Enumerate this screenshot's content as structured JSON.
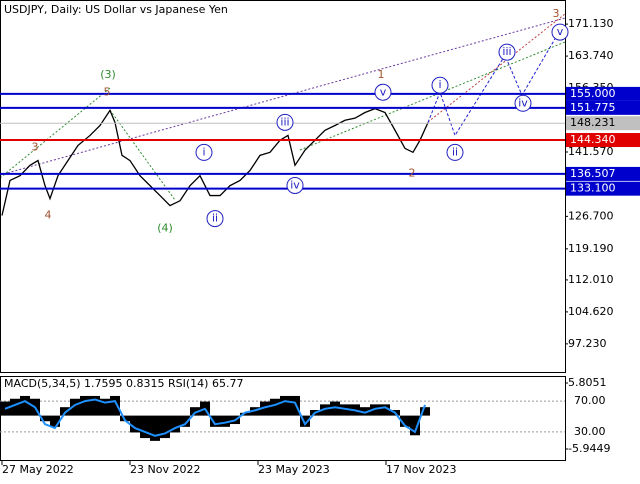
{
  "chart_data": [
    {
      "type": "line",
      "title": "USDJPY, Daily:  US Dollar vs Japanese Yen",
      "x": [
        2,
        10,
        20,
        30,
        38,
        45,
        50,
        58,
        68,
        78,
        90,
        100,
        110,
        115,
        122,
        130,
        140,
        150,
        160,
        170,
        180,
        190,
        200,
        210,
        220,
        230,
        240,
        250,
        260,
        270,
        280,
        288,
        295,
        305,
        315,
        325,
        335,
        345,
        355,
        365,
        375,
        385,
        395,
        405,
        413,
        420,
        428
      ],
      "values": [
        126.9,
        135.0,
        136.1,
        138.5,
        139.6,
        133.8,
        130.8,
        136.1,
        139.6,
        143.1,
        145.4,
        147.7,
        151.2,
        148.4,
        140.8,
        139.6,
        136.1,
        133.8,
        131.5,
        129.2,
        130.3,
        133.8,
        136.1,
        131.5,
        131.5,
        133.8,
        135.0,
        137.3,
        140.8,
        141.5,
        144.3,
        145.4,
        138.5,
        142.0,
        144.3,
        146.6,
        147.7,
        148.9,
        149.4,
        150.7,
        151.6,
        150.7,
        146.6,
        142.4,
        141.5,
        144.3,
        148.4
      ],
      "color": "#000000",
      "forecast": {
        "x": [
          428,
          440,
          455,
          505,
          522,
          560
        ],
        "values": [
          148.4,
          155.4,
          145.4,
          163.9,
          154.7,
          169.7
        ],
        "color": "#2020d0"
      },
      "xlim": [
        0,
        565
      ],
      "xticks": [
        {
          "value": 2,
          "label": "27 May 2022"
        },
        {
          "value": 130,
          "label": "23 Nov 2022"
        },
        {
          "value": 258,
          "label": "23 May 2023"
        },
        {
          "value": 386,
          "label": "17 Nov 2023"
        }
      ],
      "ylim": [
        90.5,
        176.7
      ],
      "yticks": [
        {
          "value": 171.13,
          "label": "171.130"
        },
        {
          "value": 163.74,
          "label": "163.740"
        },
        {
          "value": 156.35,
          "label": "156.350"
        },
        {
          "value": 141.57,
          "label": "141.570"
        },
        {
          "value": 126.7,
          "label": "126.700"
        },
        {
          "value": 119.19,
          "label": "119.190"
        },
        {
          "value": 112.01,
          "label": "112.010"
        },
        {
          "value": 104.62,
          "label": "104.620"
        },
        {
          "value": 97.23,
          "label": "97.230"
        }
      ],
      "levels": [
        {
          "value": 155,
          "label": "155.000",
          "color": "#0000cd"
        },
        {
          "value": 151.775,
          "label": "151.775",
          "color": "#0000cd"
        },
        {
          "value": 148.231,
          "label": "148.231",
          "color": "#c0c0c0"
        },
        {
          "value": 144.34,
          "label": "144.340",
          "color": "#e00000"
        },
        {
          "value": 136.507,
          "label": "136.507",
          "color": "#0000cd"
        },
        {
          "value": 133.1,
          "label": "133.100",
          "color": "#0000cd"
        }
      ],
      "annotations": [
        {
          "text": "(3)",
          "x": 108,
          "y": 159.32,
          "color": "#2e8b2e",
          "circled": false
        },
        {
          "text": "5",
          "x": 107,
          "y": 155.38,
          "color": "#a0522d",
          "circled": false
        },
        {
          "text": "3",
          "x": 35,
          "y": 142.64,
          "color": "#a0522d",
          "circled": false
        },
        {
          "text": "4",
          "x": 48,
          "y": 126.89,
          "color": "#a0522d",
          "circled": false
        },
        {
          "text": "(4)",
          "x": 165,
          "y": 123.88,
          "color": "#2e8b2e",
          "circled": false
        },
        {
          "text": "i",
          "x": 204,
          "y": 141.48,
          "color": "#2020c0",
          "circled": true
        },
        {
          "text": "ii",
          "x": 215,
          "y": 126.19,
          "color": "#2020c0",
          "circled": true
        },
        {
          "text": "iii",
          "x": 285,
          "y": 148.43,
          "color": "#2020c0",
          "circled": true
        },
        {
          "text": "iv",
          "x": 295,
          "y": 133.84,
          "color": "#2020c0",
          "circled": true
        },
        {
          "text": "v",
          "x": 383,
          "y": 155.38,
          "color": "#2020c0",
          "circled": true
        },
        {
          "text": "1",
          "x": 381,
          "y": 159.32,
          "color": "#a0522d",
          "circled": false
        },
        {
          "text": "2",
          "x": 412,
          "y": 136.62,
          "color": "#a0522d",
          "circled": false
        },
        {
          "text": "i",
          "x": 440,
          "y": 157.0,
          "color": "#2020c0",
          "circled": true
        },
        {
          "text": "ii",
          "x": 455,
          "y": 141.48,
          "color": "#2020c0",
          "circled": true
        },
        {
          "text": "iii",
          "x": 507,
          "y": 164.64,
          "color": "#2020c0",
          "circled": true
        },
        {
          "text": "iv",
          "x": 523,
          "y": 152.83,
          "color": "#2020c0",
          "circled": true
        },
        {
          "text": "v",
          "x": 560,
          "y": 169.28,
          "color": "#2020c0",
          "circled": true
        },
        {
          "text": "3",
          "x": 556,
          "y": 173.45,
          "color": "#a0522d",
          "circled": false
        }
      ]
    },
    {
      "type": "bar",
      "title": "MACD(5,34,5) 1.7595 0.8315 RSI(14) 65.77",
      "x": [
        0,
        10,
        20,
        30,
        40,
        50,
        60,
        70,
        80,
        90,
        100,
        110,
        120,
        130,
        140,
        150,
        160,
        170,
        180,
        190,
        200,
        210,
        220,
        230,
        240,
        250,
        260,
        270,
        280,
        290,
        300,
        310,
        320,
        330,
        340,
        350,
        360,
        370,
        380,
        390,
        400,
        410,
        420
      ],
      "values": [
        2.5,
        3,
        3.5,
        3,
        -1,
        -2,
        1.5,
        3,
        3.5,
        3.5,
        3,
        3.5,
        -1,
        -3,
        -4,
        -4.5,
        -4,
        -3,
        -2,
        1.5,
        2.5,
        -2,
        -2,
        -1.5,
        0.5,
        1.5,
        2.5,
        3,
        3.5,
        3.5,
        -2,
        1,
        2,
        2.5,
        2,
        2,
        1.5,
        2,
        2,
        1,
        -2,
        -3.5,
        1.5
      ],
      "color": "#000000",
      "ylim": [
        -7.903,
        6.873
      ],
      "yticks": [
        5.8051,
        -5.9449
      ],
      "rsi": {
        "values": [
          60,
          65,
          70,
          62,
          40,
          35,
          55,
          65,
          70,
          72,
          68,
          70,
          45,
          35,
          30,
          25,
          28,
          35,
          40,
          55,
          60,
          40,
          42,
          45,
          55,
          58,
          62,
          65,
          70,
          68,
          40,
          55,
          60,
          62,
          60,
          58,
          55,
          60,
          62,
          55,
          38,
          30,
          65
        ],
        "color": "#1e90ff",
        "axis": "y2"
      },
      "y2lim": [
        -6.45,
        101.3
      ],
      "y2ticks": [
        {
          "value": 70,
          "label": "70.00"
        },
        {
          "value": 30,
          "label": "30.00"
        }
      ]
    }
  ]
}
